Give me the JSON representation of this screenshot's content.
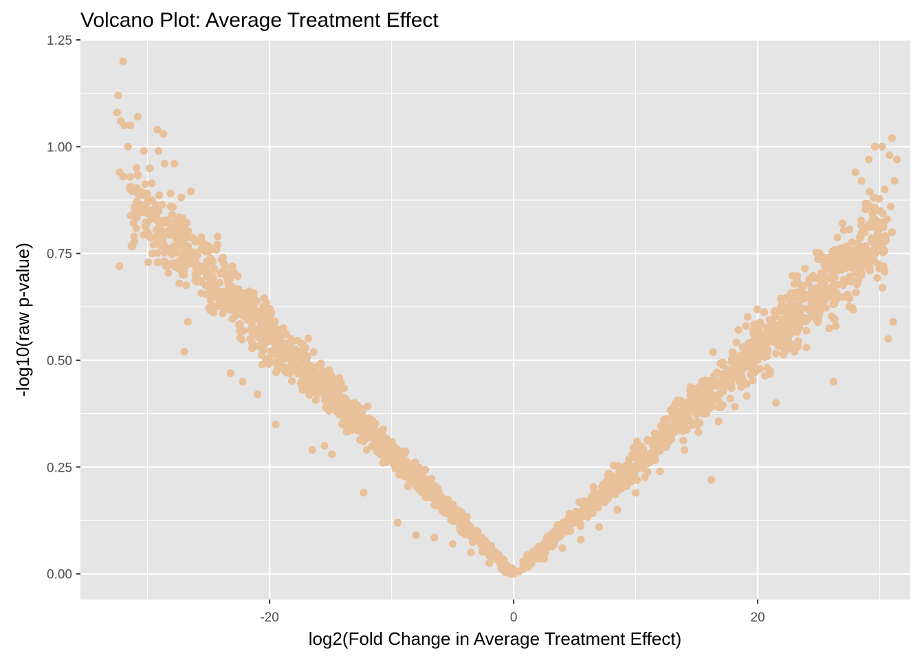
{
  "chart_data": {
    "type": "scatter",
    "title": "Volcano Plot: Average Treatment Effect",
    "xlabel": "log2(Fold Change in Average Treatment Effect)",
    "ylabel": "-log10(raw p-value)",
    "xlim": [
      -35.5,
      32.5
    ],
    "ylim": [
      -0.06,
      1.25
    ],
    "x_ticks": [
      -20,
      0,
      20
    ],
    "x_tick_labels": [
      "-20",
      "0",
      "20"
    ],
    "y_ticks": [
      0,
      0.25,
      0.5,
      0.75,
      1.0,
      1.25
    ],
    "y_tick_labels": [
      "0.00",
      "0.25",
      "0.50",
      "0.75",
      "1.00",
      "1.25"
    ],
    "grid": true,
    "legend": "none",
    "colors": {
      "point": "#E8C09A",
      "panel": "#E5E5E5",
      "grid": "#FFFFFF"
    },
    "series": [
      {
        "points": [
          [
            -32.0,
            1.2
          ],
          [
            -32.4,
            1.12
          ],
          [
            -32.5,
            1.08
          ],
          [
            -32.2,
            1.06
          ],
          [
            -31.9,
            1.05
          ],
          [
            -31.4,
            1.05
          ],
          [
            -30.8,
            1.07
          ],
          [
            -29.2,
            1.04
          ],
          [
            -28.7,
            1.03
          ],
          [
            -31.6,
            1.0
          ],
          [
            -30.3,
            0.99
          ],
          [
            -29.1,
            0.99
          ],
          [
            -32.3,
            0.94
          ],
          [
            -32.0,
            0.93
          ],
          [
            -30.9,
            0.95
          ],
          [
            -28.6,
            0.96
          ],
          [
            -27.8,
            0.96
          ],
          [
            -31.1,
            0.79
          ],
          [
            -32.3,
            0.72
          ],
          [
            -28.5,
            0.72
          ],
          [
            -27.4,
            0.68
          ],
          [
            -26.7,
            0.59
          ],
          [
            -27.0,
            0.52
          ],
          [
            -23.2,
            0.47
          ],
          [
            -22.2,
            0.45
          ],
          [
            -21.0,
            0.42
          ],
          [
            -20.6,
            0.49
          ],
          [
            -19.5,
            0.35
          ],
          [
            -16.5,
            0.29
          ],
          [
            -15.5,
            0.3
          ],
          [
            -14.9,
            0.28
          ],
          [
            -12.3,
            0.19
          ],
          [
            -9.5,
            0.12
          ],
          [
            -8.0,
            0.09
          ],
          [
            -6.5,
            0.085
          ],
          [
            -5.0,
            0.07
          ],
          [
            -3.5,
            0.05
          ],
          [
            -2.0,
            0.025
          ],
          [
            -1.0,
            0.012
          ],
          [
            -0.3,
            0.004
          ],
          [
            0.0,
            0.0
          ],
          [
            0.4,
            0.005
          ],
          [
            1.2,
            0.016
          ],
          [
            2.5,
            0.035
          ],
          [
            4.0,
            0.06
          ],
          [
            5.5,
            0.08
          ],
          [
            7.0,
            0.11
          ],
          [
            8.5,
            0.15
          ],
          [
            10.0,
            0.19
          ],
          [
            12.0,
            0.24
          ],
          [
            14.0,
            0.29
          ],
          [
            16.2,
            0.22
          ],
          [
            17.0,
            0.39
          ],
          [
            18.5,
            0.45
          ],
          [
            20.0,
            0.5
          ],
          [
            21.5,
            0.4
          ],
          [
            23.0,
            0.52
          ],
          [
            24.0,
            0.53
          ],
          [
            26.2,
            0.45
          ],
          [
            26.4,
            0.58
          ],
          [
            26.2,
            0.66
          ],
          [
            27.5,
            0.75
          ],
          [
            28.8,
            0.75
          ],
          [
            29.7,
            0.82
          ],
          [
            30.3,
            0.72
          ],
          [
            30.5,
            0.78
          ],
          [
            30.7,
            0.55
          ],
          [
            31.1,
            0.59
          ],
          [
            28.0,
            0.94
          ],
          [
            28.5,
            0.92
          ],
          [
            29.1,
            0.97
          ],
          [
            29.6,
            1.0
          ],
          [
            30.2,
            1.0
          ],
          [
            30.8,
            0.98
          ],
          [
            31.0,
            1.02
          ],
          [
            31.4,
            0.97
          ],
          [
            31.2,
            0.92
          ],
          [
            30.4,
            0.9
          ],
          [
            29.5,
            0.88
          ],
          [
            28.9,
            0.86
          ],
          [
            30.9,
            0.86
          ],
          [
            30.6,
            0.83
          ],
          [
            31.0,
            0.8
          ],
          [
            29.2,
            0.86
          ]
        ],
        "band_generator": {
          "left_arm": {
            "x_range": [
              -31.5,
              0
            ],
            "count": 1300
          },
          "right_arm": {
            "x_range": [
              0,
              30.5
            ],
            "count": 1100
          }
        }
      }
    ]
  }
}
